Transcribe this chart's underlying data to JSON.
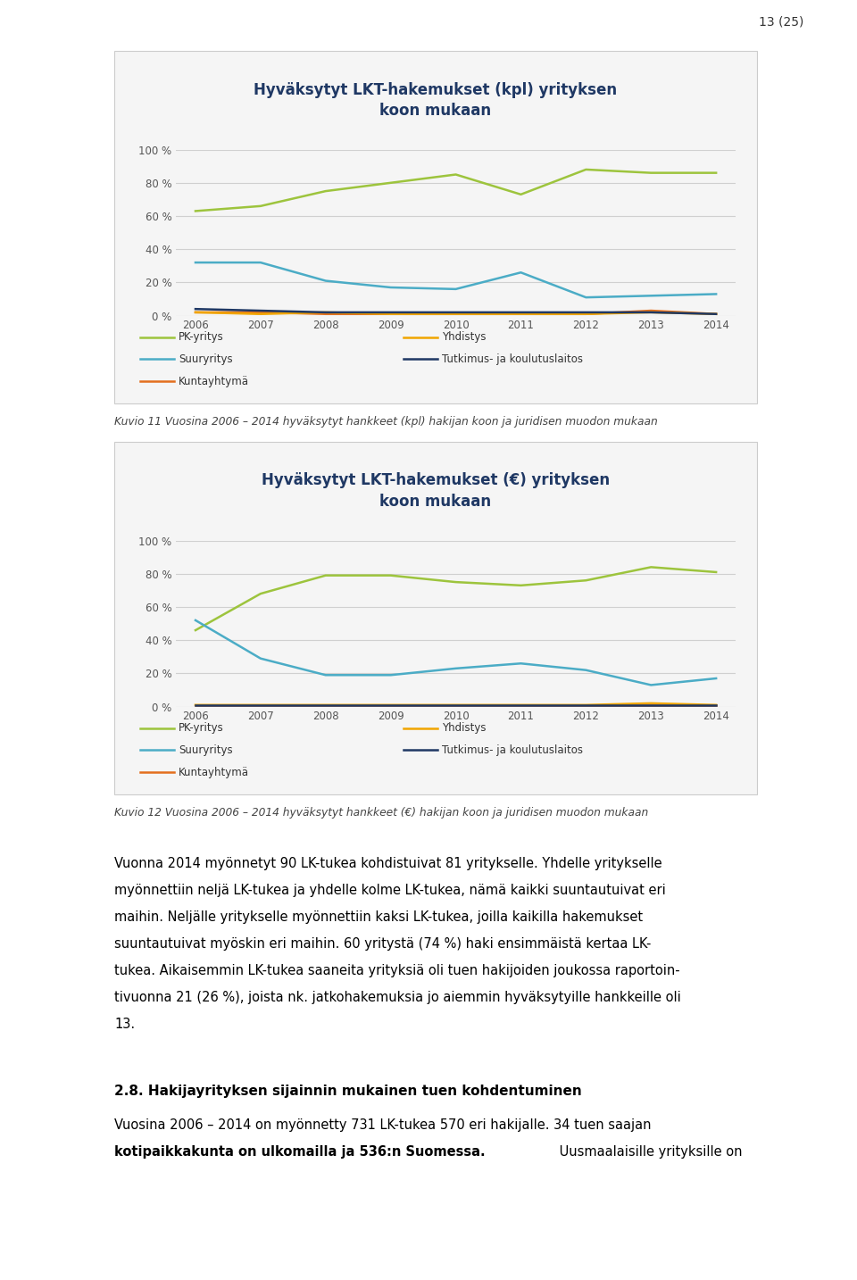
{
  "page_number": "13 (25)",
  "chart1": {
    "title_line1": "Hyväksytyt LKT-hakemukset (kpl) yrityksen",
    "title_line2": "koon mukaan",
    "years": [
      2006,
      2007,
      2008,
      2009,
      2010,
      2011,
      2012,
      2013,
      2014
    ],
    "series": {
      "PK-yritys": [
        63,
        66,
        75,
        80,
        85,
        73,
        88,
        86,
        86
      ],
      "Suuryritys": [
        32,
        32,
        21,
        17,
        16,
        26,
        11,
        12,
        13
      ],
      "Kuntayhtymä": [
        2,
        2,
        1,
        1,
        1,
        1,
        1,
        3,
        1
      ],
      "Yhdistys": [
        2,
        1,
        2,
        1,
        1,
        1,
        1,
        2,
        1
      ],
      "Tutkimus- ja koulutuslaitos": [
        4,
        3,
        2,
        2,
        2,
        2,
        2,
        2,
        1
      ]
    },
    "colors": {
      "PK-yritys": "#9dc43d",
      "Suuryritys": "#4bacc6",
      "Kuntayhtymä": "#e36f1e",
      "Yhdistys": "#f0a500",
      "Tutkimus- ja koulutuslaitos": "#1f3864"
    },
    "ylim": [
      0,
      100
    ],
    "yticks": [
      0,
      20,
      40,
      60,
      80,
      100
    ],
    "ytick_labels": [
      "0 %",
      "20 %",
      "40 %",
      "60 %",
      "80 %",
      "100 %"
    ]
  },
  "chart1_caption": "Kuvio 11 Vuosina 2006 – 2014 hyväksytyt hankkeet (kpl) hakijan koon ja juridisen muodon mukaan",
  "chart2": {
    "title_line1": "Hyväksytyt LKT-hakemukset (€) yrityksen",
    "title_line2": "koon mukaan",
    "years": [
      2006,
      2007,
      2008,
      2009,
      2010,
      2011,
      2012,
      2013,
      2014
    ],
    "series": {
      "PK-yritys": [
        46,
        68,
        79,
        79,
        75,
        73,
        76,
        84,
        81
      ],
      "Suuryritys": [
        52,
        29,
        19,
        19,
        23,
        26,
        22,
        13,
        17
      ],
      "Kuntayhtymä": [
        1,
        1,
        1,
        1,
        1,
        1,
        1,
        1,
        1
      ],
      "Yhdistys": [
        1,
        1,
        1,
        1,
        1,
        1,
        1,
        2,
        1
      ],
      "Tutkimus- ja koulutuslaitos": [
        1,
        1,
        1,
        1,
        1,
        1,
        1,
        1,
        1
      ]
    },
    "colors": {
      "PK-yritys": "#9dc43d",
      "Suuryritys": "#4bacc6",
      "Kuntayhtymä": "#e36f1e",
      "Yhdistys": "#f0a500",
      "Tutkimus- ja koulutuslaitos": "#1f3864"
    },
    "ylim": [
      0,
      100
    ],
    "yticks": [
      0,
      20,
      40,
      60,
      80,
      100
    ],
    "ytick_labels": [
      "0 %",
      "20 %",
      "40 %",
      "60 %",
      "80 %",
      "100 %"
    ]
  },
  "chart2_caption": "Kuvio 12 Vuosina 2006 – 2014 hyväksytyt hankkeet (€) hakijan koon ja juridisen muodon mukaan",
  "legend_col1": [
    "PK-yritys",
    "Suuryritys",
    "Kuntayhtymä"
  ],
  "legend_col2": [
    "Yhdistys",
    "Tutkimus- ja koulutuslaitos"
  ],
  "body_text": [
    "Vuonna 2014 myönnetyt 90 LK-tukea kohdistuivat 81 yritykselle. Yhdelle yritykselle",
    "myönnettiin neljä LK-tukea ja yhdelle kolme LK-tukea, nämä kaikki suuntautuivat eri",
    "maihin. Neljälle yritykselle myönnettiin kaksi LK-tukea, joilla kaikilla hakemukset",
    "suuntautuivat myöskin eri maihin. 60 yritystä (74 %) haki ensimmäistä kertaa LK-",
    "tukea. Aikaisemmin LK-tukea saaneita yrityksiä oli tuen hakijoiden joukossa raportoin-",
    "tivuonna 21 (26 %), joista nk. jatkohakemuksia jo aiemmin hyväksytyille hankkeille oli",
    "13."
  ],
  "section_title": "2.8. Hakijayrityksen sijainnin mukainen tuen kohdentuminen",
  "section_text1": "Vuosina 2006 – 2014 on myönnetty 731 LK-tukea 570 eri hakijalle. 34 tuen saajan",
  "section_text2_bold": "kotipaikkakunta on ulkomailla ja 536:n Suomessa.",
  "section_text2_rest": " Uusmaalaisille yrityksille on",
  "title_color": "#1f3864",
  "caption_color": "#444444",
  "body_color": "#000000",
  "chart_border_color": "#cccccc",
  "chart_bg_color": "#f5f5f5",
  "grid_color": "#d0d0d0",
  "page_bg": "#ffffff"
}
